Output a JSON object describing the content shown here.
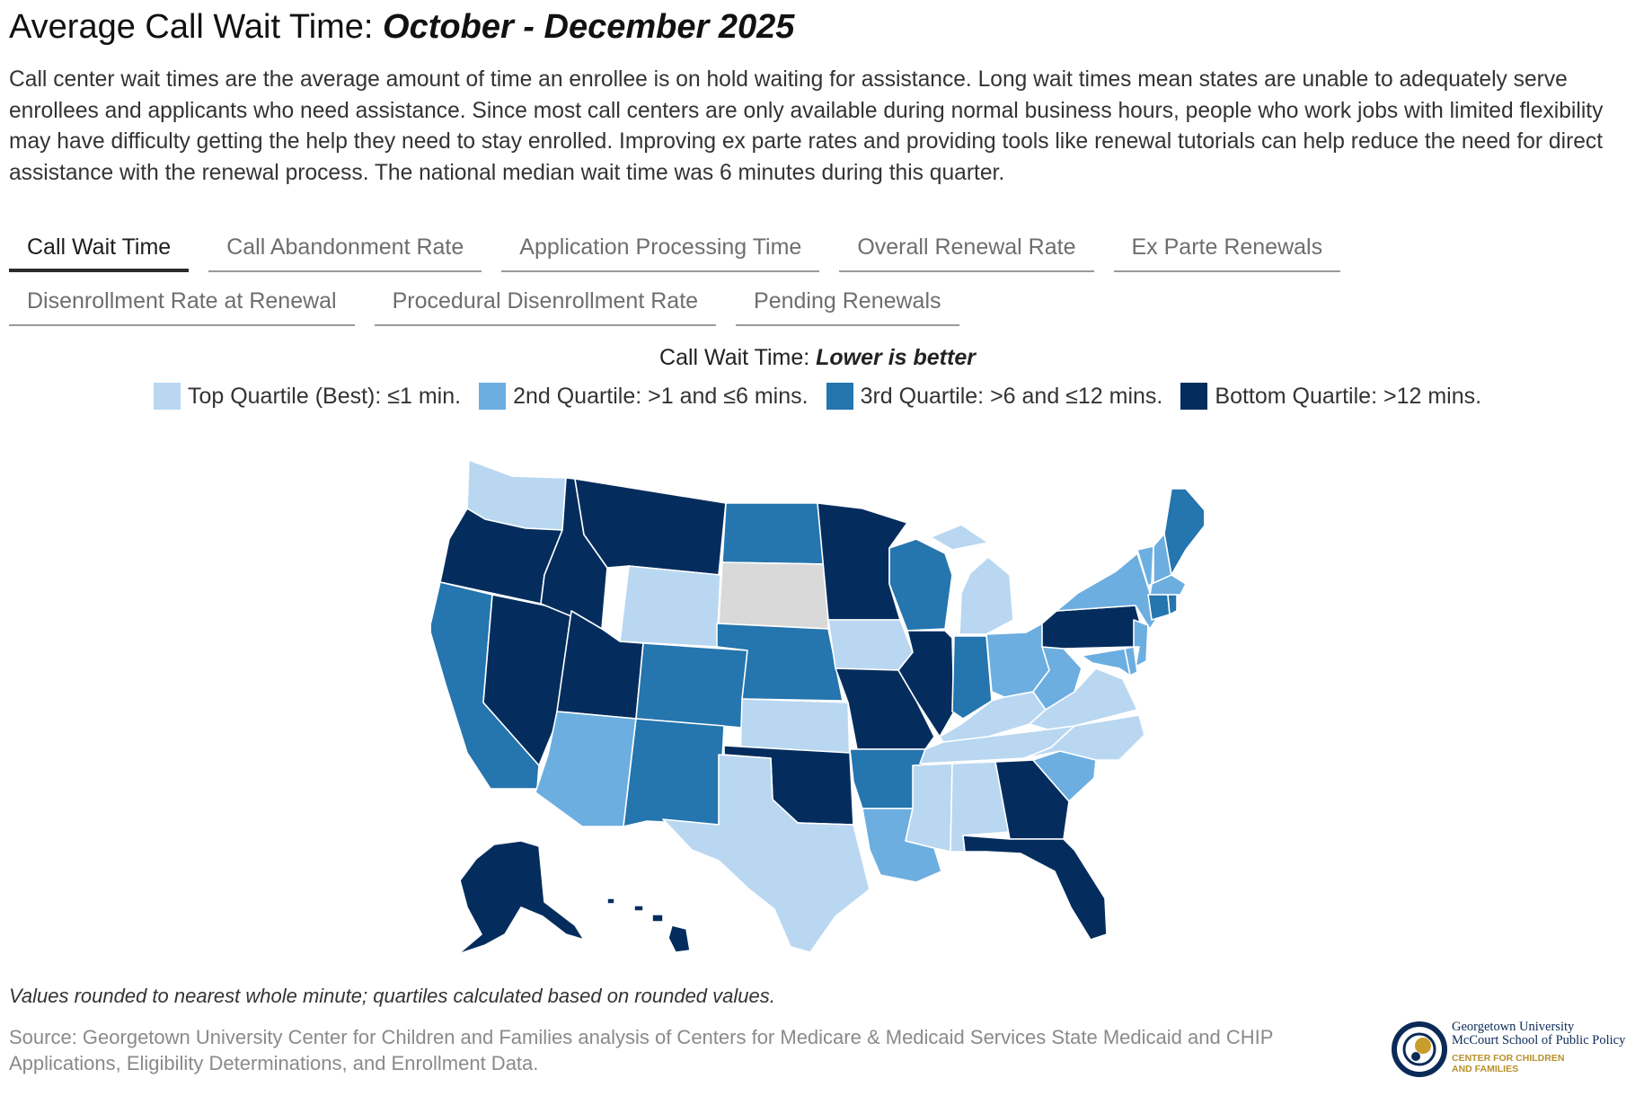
{
  "title": {
    "main": "Average Call Wait Time: ",
    "emphasis": "October - December 2025"
  },
  "intro": "Call center wait times are the average amount of time an enrollee is on hold waiting for assistance. Long wait times mean states are unable to adequately serve enrollees and applicants who need assistance. Since most call centers are only available during normal business hours, people who work jobs with limited flexibility may have difficulty getting the help they need to stay enrolled. Improving ex parte rates and providing tools like renewal tutorials can help reduce the need for direct assistance with the renewal process. The national median wait time was 6 minutes during this quarter.",
  "tabs": [
    {
      "label": "Call Wait Time",
      "active": true
    },
    {
      "label": "Call Abandonment Rate"
    },
    {
      "label": "Application Processing Time"
    },
    {
      "label": "Overall Renewal Rate"
    },
    {
      "label": "Ex Parte Renewals"
    },
    {
      "label": "Disenrollment Rate at Renewal"
    },
    {
      "label": "Procedural Disenrollment Rate"
    },
    {
      "label": "Pending Renewals"
    }
  ],
  "legend": {
    "title_main": "Call Wait Time: ",
    "title_emphasis": "Lower is better",
    "items": [
      {
        "label": "Top Quartile (Best): ≤1 min.",
        "color": "#b9d7f1"
      },
      {
        "label": "2nd Quartile: >1 and ≤6 mins.",
        "color": "#6caee0"
      },
      {
        "label": "3rd Quartile: >6 and ≤12 mins.",
        "color": "#2575ae"
      },
      {
        "label": "Bottom Quartile: >12 mins.",
        "color": "#042d5e"
      }
    ],
    "no_data_color": "#d9d9d9"
  },
  "map_data": {
    "quartile_by_state": {
      "WA": 1,
      "OR": 4,
      "CA": 3,
      "NV": 4,
      "ID": 4,
      "MT": 4,
      "WY": 1,
      "UT": 4,
      "AZ": 2,
      "CO": 3,
      "NM": 3,
      "ND": 3,
      "SD": null,
      "NE": 3,
      "KS": 1,
      "OK": 4,
      "TX": 1,
      "MN": 4,
      "IA": 1,
      "MO": 4,
      "AR": 3,
      "LA": 2,
      "WI": 3,
      "IL": 4,
      "MI": 1,
      "IN": 3,
      "OH": 2,
      "KY": 1,
      "TN": 1,
      "MS": 1,
      "AL": 1,
      "GA": 4,
      "FL": 4,
      "SC": 2,
      "NC": 1,
      "VA": 1,
      "WV": 2,
      "PA": 4,
      "NY": 2,
      "VT": 2,
      "NH": 2,
      "ME": 3,
      "MA": 2,
      "CT": 3,
      "RI": 3,
      "NJ": 2,
      "DE": 2,
      "MD": 2,
      "AK": 4,
      "HI": 4
    }
  },
  "note": "Values rounded to nearest whole minute; quartiles calculated based on rounded values.",
  "source": "Source: Georgetown University Center for Children and Families analysis of Centers for Medicare & Medicaid Services State Medicaid and CHIP Applications, Eligibility Determinations, and Enrollment Data.",
  "logo": {
    "line1": "Georgetown University",
    "line2": "McCourt School of Public Policy",
    "line3": "CENTER FOR CHILDREN",
    "line4": "AND FAMILIES"
  }
}
